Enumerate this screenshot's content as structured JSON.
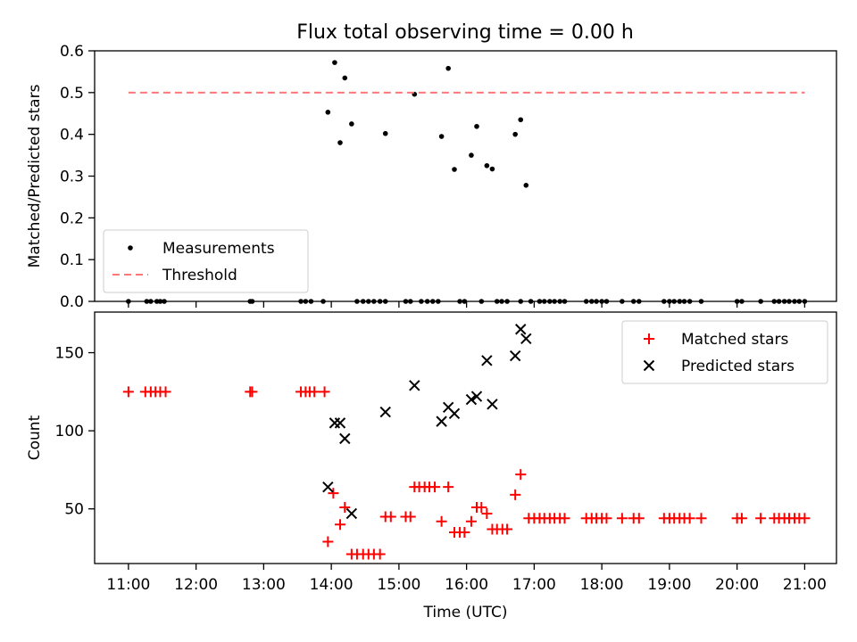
{
  "chart_data": [
    {
      "type": "scatter",
      "title": "Flux total observing time = 0.00 h",
      "xlabel": "",
      "ylabel": "Matched/Predicted stars",
      "ylim": [
        0,
        0.6
      ],
      "xlim": [
        10.5,
        21.47
      ],
      "yticks": [
        0,
        0.1,
        0.2,
        0.3,
        0.4,
        0.5,
        0.6
      ],
      "ytick_labels": [
        "0.0",
        "0.1",
        "0.2",
        "0.3",
        "0.4",
        "0.5",
        "0.6"
      ],
      "legend_position": "lower-left",
      "series": [
        {
          "name": "Measurements",
          "color": "#000000",
          "marker": "dot",
          "points": [
            [
              11.0,
              0
            ],
            [
              11.27,
              0
            ],
            [
              11.33,
              0
            ],
            [
              11.42,
              0
            ],
            [
              11.47,
              0
            ],
            [
              11.53,
              0
            ],
            [
              12.8,
              0
            ],
            [
              12.83,
              0
            ],
            [
              13.55,
              0
            ],
            [
              13.62,
              0
            ],
            [
              13.7,
              0
            ],
            [
              13.88,
              0
            ],
            [
              14.38,
              0
            ],
            [
              14.47,
              0
            ],
            [
              14.55,
              0
            ],
            [
              14.63,
              0
            ],
            [
              14.72,
              0
            ],
            [
              14.8,
              0
            ],
            [
              15.1,
              0
            ],
            [
              15.17,
              0
            ],
            [
              15.33,
              0
            ],
            [
              15.42,
              0
            ],
            [
              15.5,
              0
            ],
            [
              15.58,
              0
            ],
            [
              15.9,
              0
            ],
            [
              15.97,
              0
            ],
            [
              16.22,
              0
            ],
            [
              16.45,
              0
            ],
            [
              16.52,
              0
            ],
            [
              16.6,
              0
            ],
            [
              16.8,
              0
            ],
            [
              16.95,
              0
            ],
            [
              17.08,
              0
            ],
            [
              17.15,
              0
            ],
            [
              17.23,
              0
            ],
            [
              17.3,
              0
            ],
            [
              17.38,
              0
            ],
            [
              17.45,
              0
            ],
            [
              17.77,
              0
            ],
            [
              17.85,
              0
            ],
            [
              17.92,
              0
            ],
            [
              18.0,
              0
            ],
            [
              18.07,
              0
            ],
            [
              18.3,
              0
            ],
            [
              18.47,
              0
            ],
            [
              18.55,
              0
            ],
            [
              18.92,
              0
            ],
            [
              19.0,
              0
            ],
            [
              19.07,
              0
            ],
            [
              19.15,
              0
            ],
            [
              19.22,
              0
            ],
            [
              19.3,
              0
            ],
            [
              19.47,
              0
            ],
            [
              20.0,
              0
            ],
            [
              20.07,
              0
            ],
            [
              20.35,
              0
            ],
            [
              20.55,
              0
            ],
            [
              20.62,
              0
            ],
            [
              20.7,
              0
            ],
            [
              20.77,
              0
            ],
            [
              20.85,
              0
            ],
            [
              20.92,
              0
            ],
            [
              21.0,
              0
            ],
            [
              13.95,
              0.453
            ],
            [
              14.05,
              0.572
            ],
            [
              14.13,
              0.38
            ],
            [
              14.2,
              0.535
            ],
            [
              14.3,
              0.425
            ],
            [
              14.8,
              0.402
            ],
            [
              15.23,
              0.496
            ],
            [
              15.63,
              0.395
            ],
            [
              15.73,
              0.558
            ],
            [
              15.82,
              0.316
            ],
            [
              16.07,
              0.35
            ],
            [
              16.15,
              0.419
            ],
            [
              16.3,
              0.325
            ],
            [
              16.38,
              0.317
            ],
            [
              16.72,
              0.4
            ],
            [
              16.8,
              0.435
            ],
            [
              16.88,
              0.278
            ]
          ]
        },
        {
          "name": "Threshold",
          "color": "#ff7777",
          "style": "dashed",
          "points": [
            [
              11.0,
              0.5
            ],
            [
              21.0,
              0.5
            ]
          ]
        }
      ]
    },
    {
      "type": "scatter",
      "xlabel": "Time (UTC)",
      "ylabel": "Count",
      "ylim": [
        15,
        176
      ],
      "xlim": [
        10.5,
        21.47
      ],
      "yticks": [
        50,
        100,
        150
      ],
      "ytick_labels": [
        "50",
        "100",
        "150"
      ],
      "xticks": [
        11,
        12,
        13,
        14,
        15,
        16,
        17,
        18,
        19,
        20,
        21
      ],
      "xtick_labels": [
        "11:00",
        "12:00",
        "13:00",
        "14:00",
        "15:00",
        "16:00",
        "17:00",
        "18:00",
        "19:00",
        "20:00",
        "21:00"
      ],
      "legend_position": "upper-right",
      "series": [
        {
          "name": "Matched stars",
          "color": "#ff0000",
          "marker": "plus",
          "points": [
            [
              11.0,
              125
            ],
            [
              11.25,
              125
            ],
            [
              11.33,
              125
            ],
            [
              11.4,
              125
            ],
            [
              11.47,
              125
            ],
            [
              11.55,
              125
            ],
            [
              12.8,
              125
            ],
            [
              12.83,
              125
            ],
            [
              13.55,
              125
            ],
            [
              13.62,
              125
            ],
            [
              13.68,
              125
            ],
            [
              13.75,
              125
            ],
            [
              13.9,
              125
            ],
            [
              13.95,
              29
            ],
            [
              14.03,
              60
            ],
            [
              14.13,
              40
            ],
            [
              14.2,
              51
            ],
            [
              14.3,
              21
            ],
            [
              14.38,
              21
            ],
            [
              14.47,
              21
            ],
            [
              14.55,
              21
            ],
            [
              14.63,
              21
            ],
            [
              14.72,
              21
            ],
            [
              14.8,
              45
            ],
            [
              14.88,
              45
            ],
            [
              15.1,
              45
            ],
            [
              15.17,
              45
            ],
            [
              15.23,
              64
            ],
            [
              15.3,
              64
            ],
            [
              15.38,
              64
            ],
            [
              15.45,
              64
            ],
            [
              15.53,
              64
            ],
            [
              15.63,
              42
            ],
            [
              15.73,
              64
            ],
            [
              15.82,
              35
            ],
            [
              15.9,
              35
            ],
            [
              15.97,
              35
            ],
            [
              16.07,
              42
            ],
            [
              16.15,
              51
            ],
            [
              16.22,
              51
            ],
            [
              16.3,
              47
            ],
            [
              16.38,
              37
            ],
            [
              16.45,
              37
            ],
            [
              16.53,
              37
            ],
            [
              16.6,
              37
            ],
            [
              16.72,
              59
            ],
            [
              16.8,
              72
            ],
            [
              16.92,
              44
            ],
            [
              17.0,
              44
            ],
            [
              17.08,
              44
            ],
            [
              17.15,
              44
            ],
            [
              17.23,
              44
            ],
            [
              17.3,
              44
            ],
            [
              17.38,
              44
            ],
            [
              17.45,
              44
            ],
            [
              17.77,
              44
            ],
            [
              17.85,
              44
            ],
            [
              17.92,
              44
            ],
            [
              18.0,
              44
            ],
            [
              18.07,
              44
            ],
            [
              18.3,
              44
            ],
            [
              18.47,
              44
            ],
            [
              18.55,
              44
            ],
            [
              18.92,
              44
            ],
            [
              19.0,
              44
            ],
            [
              19.07,
              44
            ],
            [
              19.15,
              44
            ],
            [
              19.22,
              44
            ],
            [
              19.3,
              44
            ],
            [
              19.47,
              44
            ],
            [
              20.0,
              44
            ],
            [
              20.07,
              44
            ],
            [
              20.35,
              44
            ],
            [
              20.55,
              44
            ],
            [
              20.62,
              44
            ],
            [
              20.7,
              44
            ],
            [
              20.77,
              44
            ],
            [
              20.85,
              44
            ],
            [
              20.92,
              44
            ],
            [
              21.0,
              44
            ]
          ]
        },
        {
          "name": "Predicted stars",
          "color": "#000000",
          "marker": "x",
          "points": [
            [
              13.95,
              64
            ],
            [
              14.05,
              105
            ],
            [
              14.13,
              105
            ],
            [
              14.2,
              95
            ],
            [
              14.3,
              47
            ],
            [
              14.8,
              112
            ],
            [
              15.23,
              129
            ],
            [
              15.63,
              106
            ],
            [
              15.73,
              115
            ],
            [
              15.82,
              111
            ],
            [
              16.07,
              120
            ],
            [
              16.15,
              122
            ],
            [
              16.3,
              145
            ],
            [
              16.38,
              117
            ],
            [
              16.72,
              148
            ],
            [
              16.8,
              165
            ],
            [
              16.88,
              159
            ]
          ]
        }
      ]
    }
  ]
}
